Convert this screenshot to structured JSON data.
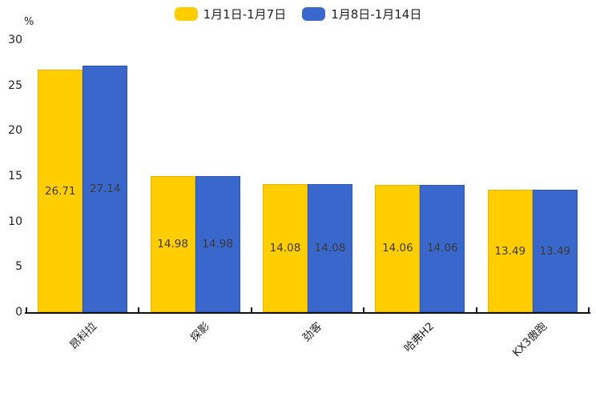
{
  "chart_data": {
    "type": "bar",
    "title": "",
    "categories": [
      "昂科拉",
      "探影",
      "劲客",
      "哈弗H2",
      "KX3傲跑"
    ],
    "series": [
      {
        "name": "1月1日-1月7日",
        "color": "#FFCD00",
        "border_color": "#E3B400",
        "values": [
          26.71,
          14.98,
          14.08,
          14.06,
          13.49
        ]
      },
      {
        "name": "1月8日-1月14日",
        "color": "#3A67CB",
        "border_color": "#2E57B4",
        "values": [
          27.14,
          14.98,
          14.08,
          14.06,
          13.49
        ]
      }
    ],
    "xlabel": "",
    "ylabel": "%",
    "ylim": [
      0,
      30
    ],
    "yticks": [
      0,
      5,
      10,
      15,
      20,
      25,
      30
    ],
    "value_labels_shown": true,
    "legend_position": "top-center",
    "grid": false,
    "axis_color": "#111111",
    "text_color": "#222222",
    "background_color": "#ffffff"
  }
}
